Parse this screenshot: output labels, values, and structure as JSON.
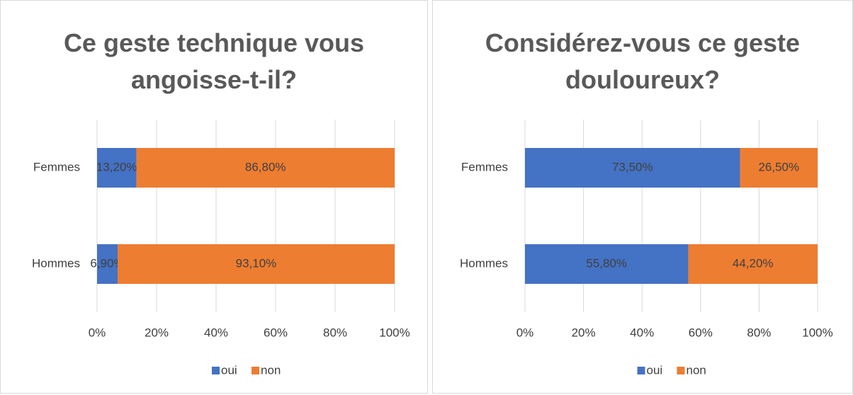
{
  "chart_data": [
    {
      "type": "stacked_barh",
      "title": "Ce geste technique vous angoisse-t-il?",
      "categories": [
        "Femmes",
        "Hommes"
      ],
      "series": [
        {
          "name": "oui",
          "color": "#4472c4",
          "values": [
            13.2,
            6.9
          ],
          "value_labels": [
            "13,20%",
            "6,90%"
          ]
        },
        {
          "name": "non",
          "color": "#ed7d31",
          "values": [
            86.8,
            93.1
          ],
          "value_labels": [
            "86,80%",
            "93,10%"
          ]
        }
      ],
      "xlim": [
        0,
        100
      ],
      "xticks": [
        {
          "value": 0,
          "label": "0%"
        },
        {
          "value": 20,
          "label": "20%"
        },
        {
          "value": 40,
          "label": "40%"
        },
        {
          "value": 60,
          "label": "60%"
        },
        {
          "value": 80,
          "label": "80%"
        },
        {
          "value": 100,
          "label": "100%"
        }
      ],
      "grid": true,
      "legend": "bottom"
    },
    {
      "type": "stacked_barh",
      "title": "Considérez-vous ce geste douloureux?",
      "categories": [
        "Femmes",
        "Hommes"
      ],
      "series": [
        {
          "name": "oui",
          "color": "#4472c4",
          "values": [
            73.5,
            55.8
          ],
          "value_labels": [
            "73,50%",
            "55,80%"
          ]
        },
        {
          "name": "non",
          "color": "#ed7d31",
          "values": [
            26.5,
            44.2
          ],
          "value_labels": [
            "26,50%",
            "44,20%"
          ]
        }
      ],
      "xlim": [
        0,
        100
      ],
      "xticks": [
        {
          "value": 0,
          "label": "0%"
        },
        {
          "value": 20,
          "label": "20%"
        },
        {
          "value": 40,
          "label": "40%"
        },
        {
          "value": 60,
          "label": "60%"
        },
        {
          "value": 80,
          "label": "80%"
        },
        {
          "value": 100,
          "label": "100%"
        }
      ],
      "grid": true,
      "legend": "bottom"
    }
  ]
}
